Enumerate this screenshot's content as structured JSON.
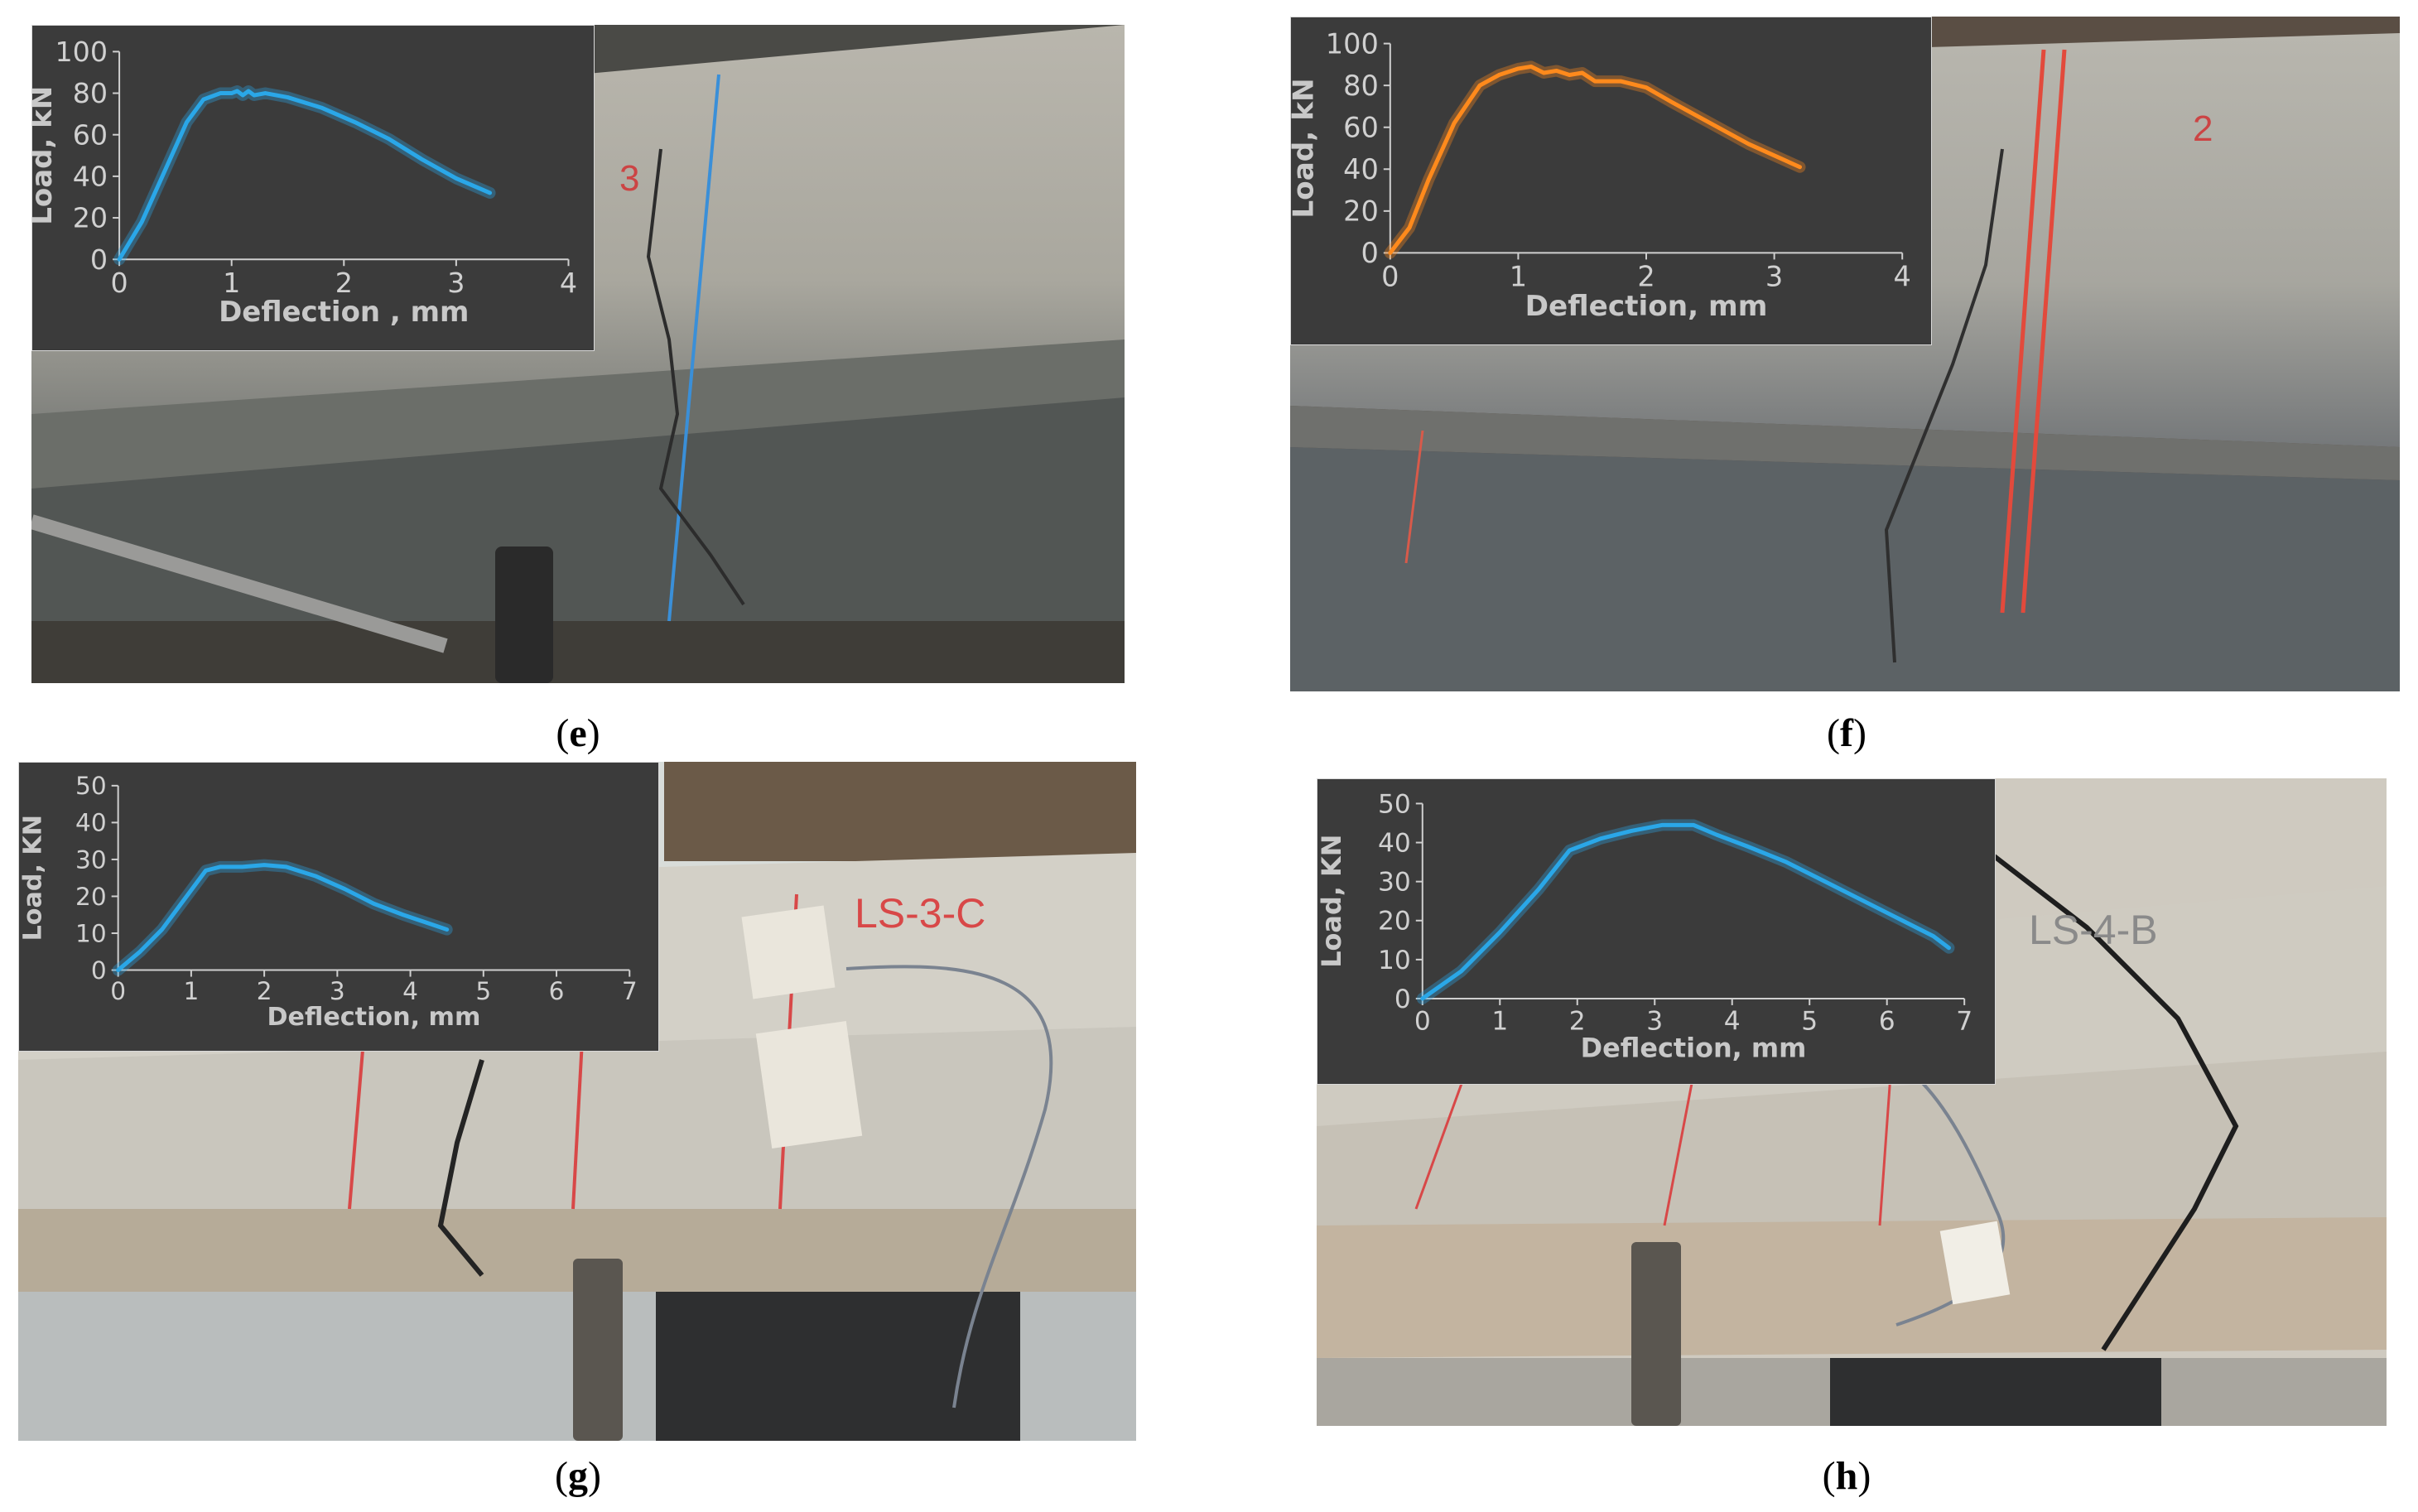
{
  "panels": [
    {
      "label": "e",
      "photo_label": "3"
    },
    {
      "label": "f",
      "photo_label": "2"
    },
    {
      "label": "g",
      "photo_label": "LS-3-C"
    },
    {
      "label": "h",
      "photo_label": "LS-4-B"
    }
  ],
  "chart_data": [
    {
      "type": "line",
      "panel": "e",
      "xlabel": "Deflection , mm",
      "ylabel": "Load, kN",
      "xlim": [
        0,
        4
      ],
      "ylim": [
        0,
        100
      ],
      "xticks": [
        0,
        1,
        2,
        3,
        4
      ],
      "yticks": [
        0,
        20,
        40,
        60,
        80,
        100
      ],
      "grid": false,
      "color": "#2aa7e8",
      "series": [
        {
          "x": [
            0,
            0.2,
            0.4,
            0.6,
            0.75,
            0.9,
            1.0,
            1.05,
            1.1,
            1.15,
            1.2,
            1.3,
            1.5,
            1.8,
            2.1,
            2.4,
            2.7,
            3.0,
            3.3
          ],
          "y": [
            0,
            18,
            42,
            66,
            77,
            80,
            80,
            81,
            79,
            81,
            79,
            80,
            78,
            73,
            66,
            58,
            48,
            39,
            32
          ]
        }
      ]
    },
    {
      "type": "line",
      "panel": "f",
      "xlabel": "Deflection, mm",
      "ylabel": "Load, kN",
      "xlim": [
        0,
        4
      ],
      "ylim": [
        0,
        100
      ],
      "xticks": [
        0,
        1,
        2,
        3,
        4
      ],
      "yticks": [
        0,
        20,
        40,
        60,
        80,
        100
      ],
      "grid": false,
      "color": "#ff8a1c",
      "series": [
        {
          "x": [
            0,
            0.15,
            0.3,
            0.5,
            0.7,
            0.85,
            1.0,
            1.1,
            1.2,
            1.3,
            1.4,
            1.5,
            1.6,
            1.8,
            2.0,
            2.2,
            2.5,
            2.8,
            3.2
          ],
          "y": [
            0,
            12,
            35,
            62,
            80,
            85,
            88,
            89,
            86,
            87,
            85,
            86,
            82,
            82,
            79,
            72,
            62,
            52,
            41
          ]
        }
      ]
    },
    {
      "type": "line",
      "panel": "g",
      "xlabel": "Deflection, mm",
      "ylabel": "Load, KN",
      "xlim": [
        0,
        7
      ],
      "ylim": [
        0,
        50
      ],
      "xticks": [
        0,
        1,
        2,
        3,
        4,
        5,
        6,
        7
      ],
      "yticks": [
        0,
        10,
        20,
        30,
        40,
        50
      ],
      "grid": false,
      "color": "#2aa7e8",
      "series": [
        {
          "x": [
            0,
            0.3,
            0.6,
            0.9,
            1.2,
            1.4,
            1.7,
            2.0,
            2.3,
            2.7,
            3.1,
            3.5,
            3.9,
            4.2,
            4.5
          ],
          "y": [
            0,
            5,
            11,
            19,
            27,
            28,
            28,
            28.5,
            28,
            25.5,
            22,
            18,
            15,
            13,
            11
          ]
        }
      ]
    },
    {
      "type": "line",
      "panel": "h",
      "xlabel": "Deflection, mm",
      "ylabel": "Load, KN",
      "xlim": [
        0,
        7
      ],
      "ylim": [
        0,
        50
      ],
      "xticks": [
        0,
        1,
        2,
        3,
        4,
        5,
        6,
        7
      ],
      "yticks": [
        0,
        10,
        20,
        30,
        40,
        50
      ],
      "grid": false,
      "color": "#2aa7e8",
      "series": [
        {
          "x": [
            0,
            0.5,
            1.0,
            1.5,
            1.9,
            2.3,
            2.7,
            3.1,
            3.5,
            3.8,
            4.2,
            4.7,
            5.2,
            5.7,
            6.2,
            6.6,
            6.8
          ],
          "y": [
            0,
            7,
            17,
            28,
            38,
            41,
            43,
            44.5,
            44.5,
            42,
            39,
            35,
            30,
            25,
            20,
            16,
            13
          ]
        }
      ]
    }
  ]
}
